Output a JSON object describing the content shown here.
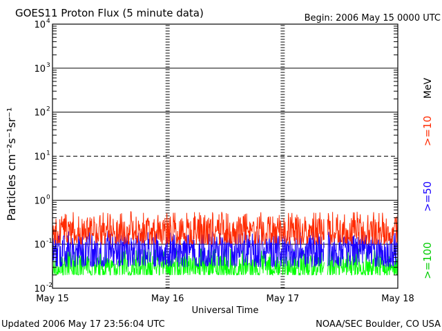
{
  "header": {
    "title": "GOES11 Proton Flux (5 minute data)",
    "begin": "Begin: 2006 May 15 0000 UTC"
  },
  "footer": {
    "updated": "Updated 2006 May 17 23:56:04 UTC",
    "source": "NOAA/SEC Boulder, CO USA"
  },
  "chart_data": {
    "type": "line",
    "title": "GOES11 Proton Flux (5 minute data)",
    "xlabel": "Universal Time",
    "ylabel": "Particles cm⁻²s⁻¹sr⁻¹",
    "y_scale": "log",
    "ylim": [
      0.01,
      10000
    ],
    "y_ticks": [
      {
        "base": "10",
        "exp": "-2"
      },
      {
        "base": "10",
        "exp": "-1"
      },
      {
        "base": "10",
        "exp": "0"
      },
      {
        "base": "10",
        "exp": "1"
      },
      {
        "base": "10",
        "exp": "2"
      },
      {
        "base": "10",
        "exp": "3"
      },
      {
        "base": "10",
        "exp": "4"
      }
    ],
    "x_ticks": [
      "May 15",
      "May 16",
      "May 17",
      "May 18"
    ],
    "xlim_days": [
      0,
      3
    ],
    "grid": true,
    "unit_label": "MeV",
    "data_gap": [
      2.36,
      2.39
    ],
    "series": [
      {
        "name": ">=10",
        "color": "#ff2a00",
        "typical": 0.2,
        "min": 0.1,
        "max": 0.55
      },
      {
        "name": ">=50",
        "color": "#1a00ff",
        "typical": 0.07,
        "min": 0.03,
        "max": 0.2
      },
      {
        "name": ">=100",
        "color": "#00ff00",
        "typical": 0.03,
        "min": 0.02,
        "max": 0.08
      }
    ]
  }
}
